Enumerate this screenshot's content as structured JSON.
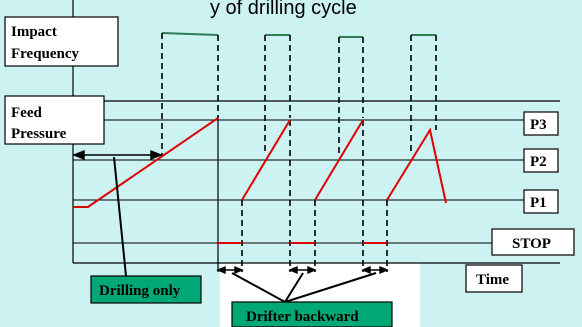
{
  "title_partial": "y of drilling cycle",
  "labels": {
    "impact_frequency_line1": "Impact",
    "impact_frequency_line2": "Frequency",
    "feed_pressure_line1": "Feed",
    "feed_pressure_line2": "Pressure",
    "p3": "P3",
    "p2": "P2",
    "p1": "P1",
    "stop": "STOP",
    "time": "Time",
    "drilling_only": "Drilling only",
    "drifter_backward": "Drifter backward"
  },
  "colors": {
    "panel_fill": "#ccf2f2",
    "impact_signal": "#2e7d57",
    "pressure_signal": "#e00000",
    "callout_fill": "#00a876",
    "axis": "#000000"
  }
}
